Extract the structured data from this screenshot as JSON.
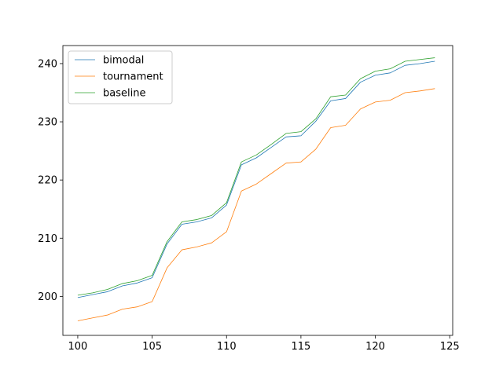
{
  "chart_data": {
    "type": "line",
    "title": "",
    "xlabel": "",
    "ylabel": "",
    "xlim": [
      99,
      125.2
    ],
    "ylim": [
      193.3,
      243.1
    ],
    "xticks": [
      100,
      105,
      110,
      115,
      120,
      125
    ],
    "yticks": [
      200,
      210,
      220,
      230,
      240
    ],
    "grid": false,
    "legend_position": "upper-left",
    "x": [
      100,
      101,
      102,
      103,
      104,
      105,
      106,
      107,
      108,
      109,
      110,
      111,
      112,
      113,
      114,
      115,
      116,
      117,
      118,
      119,
      120,
      121,
      122,
      123,
      124
    ],
    "series": [
      {
        "name": "bimodal",
        "color": "#1f77b4",
        "values": [
          199.8,
          200.3,
          200.8,
          201.8,
          202.3,
          203.2,
          209.0,
          212.4,
          212.8,
          213.5,
          215.7,
          222.6,
          223.8,
          225.6,
          227.4,
          227.6,
          230.1,
          233.6,
          234.0,
          236.8,
          238.0,
          238.4,
          239.7,
          240.0,
          240.4
        ]
      },
      {
        "name": "tournament",
        "color": "#ff7f0e",
        "values": [
          195.8,
          196.3,
          196.8,
          197.8,
          198.2,
          199.1,
          204.9,
          208.0,
          208.5,
          209.2,
          211.1,
          218.1,
          219.3,
          221.1,
          222.9,
          223.1,
          225.3,
          229.0,
          229.4,
          232.2,
          233.4,
          233.7,
          235.0,
          235.3,
          235.7
        ]
      },
      {
        "name": "baseline",
        "color": "#2ca02c",
        "values": [
          200.2,
          200.6,
          201.2,
          202.2,
          202.7,
          203.6,
          209.4,
          212.8,
          213.2,
          213.9,
          216.1,
          223.1,
          224.3,
          226.1,
          228.0,
          228.3,
          230.5,
          234.3,
          234.6,
          237.4,
          238.7,
          239.1,
          240.4,
          240.7,
          241.0
        ]
      }
    ]
  }
}
